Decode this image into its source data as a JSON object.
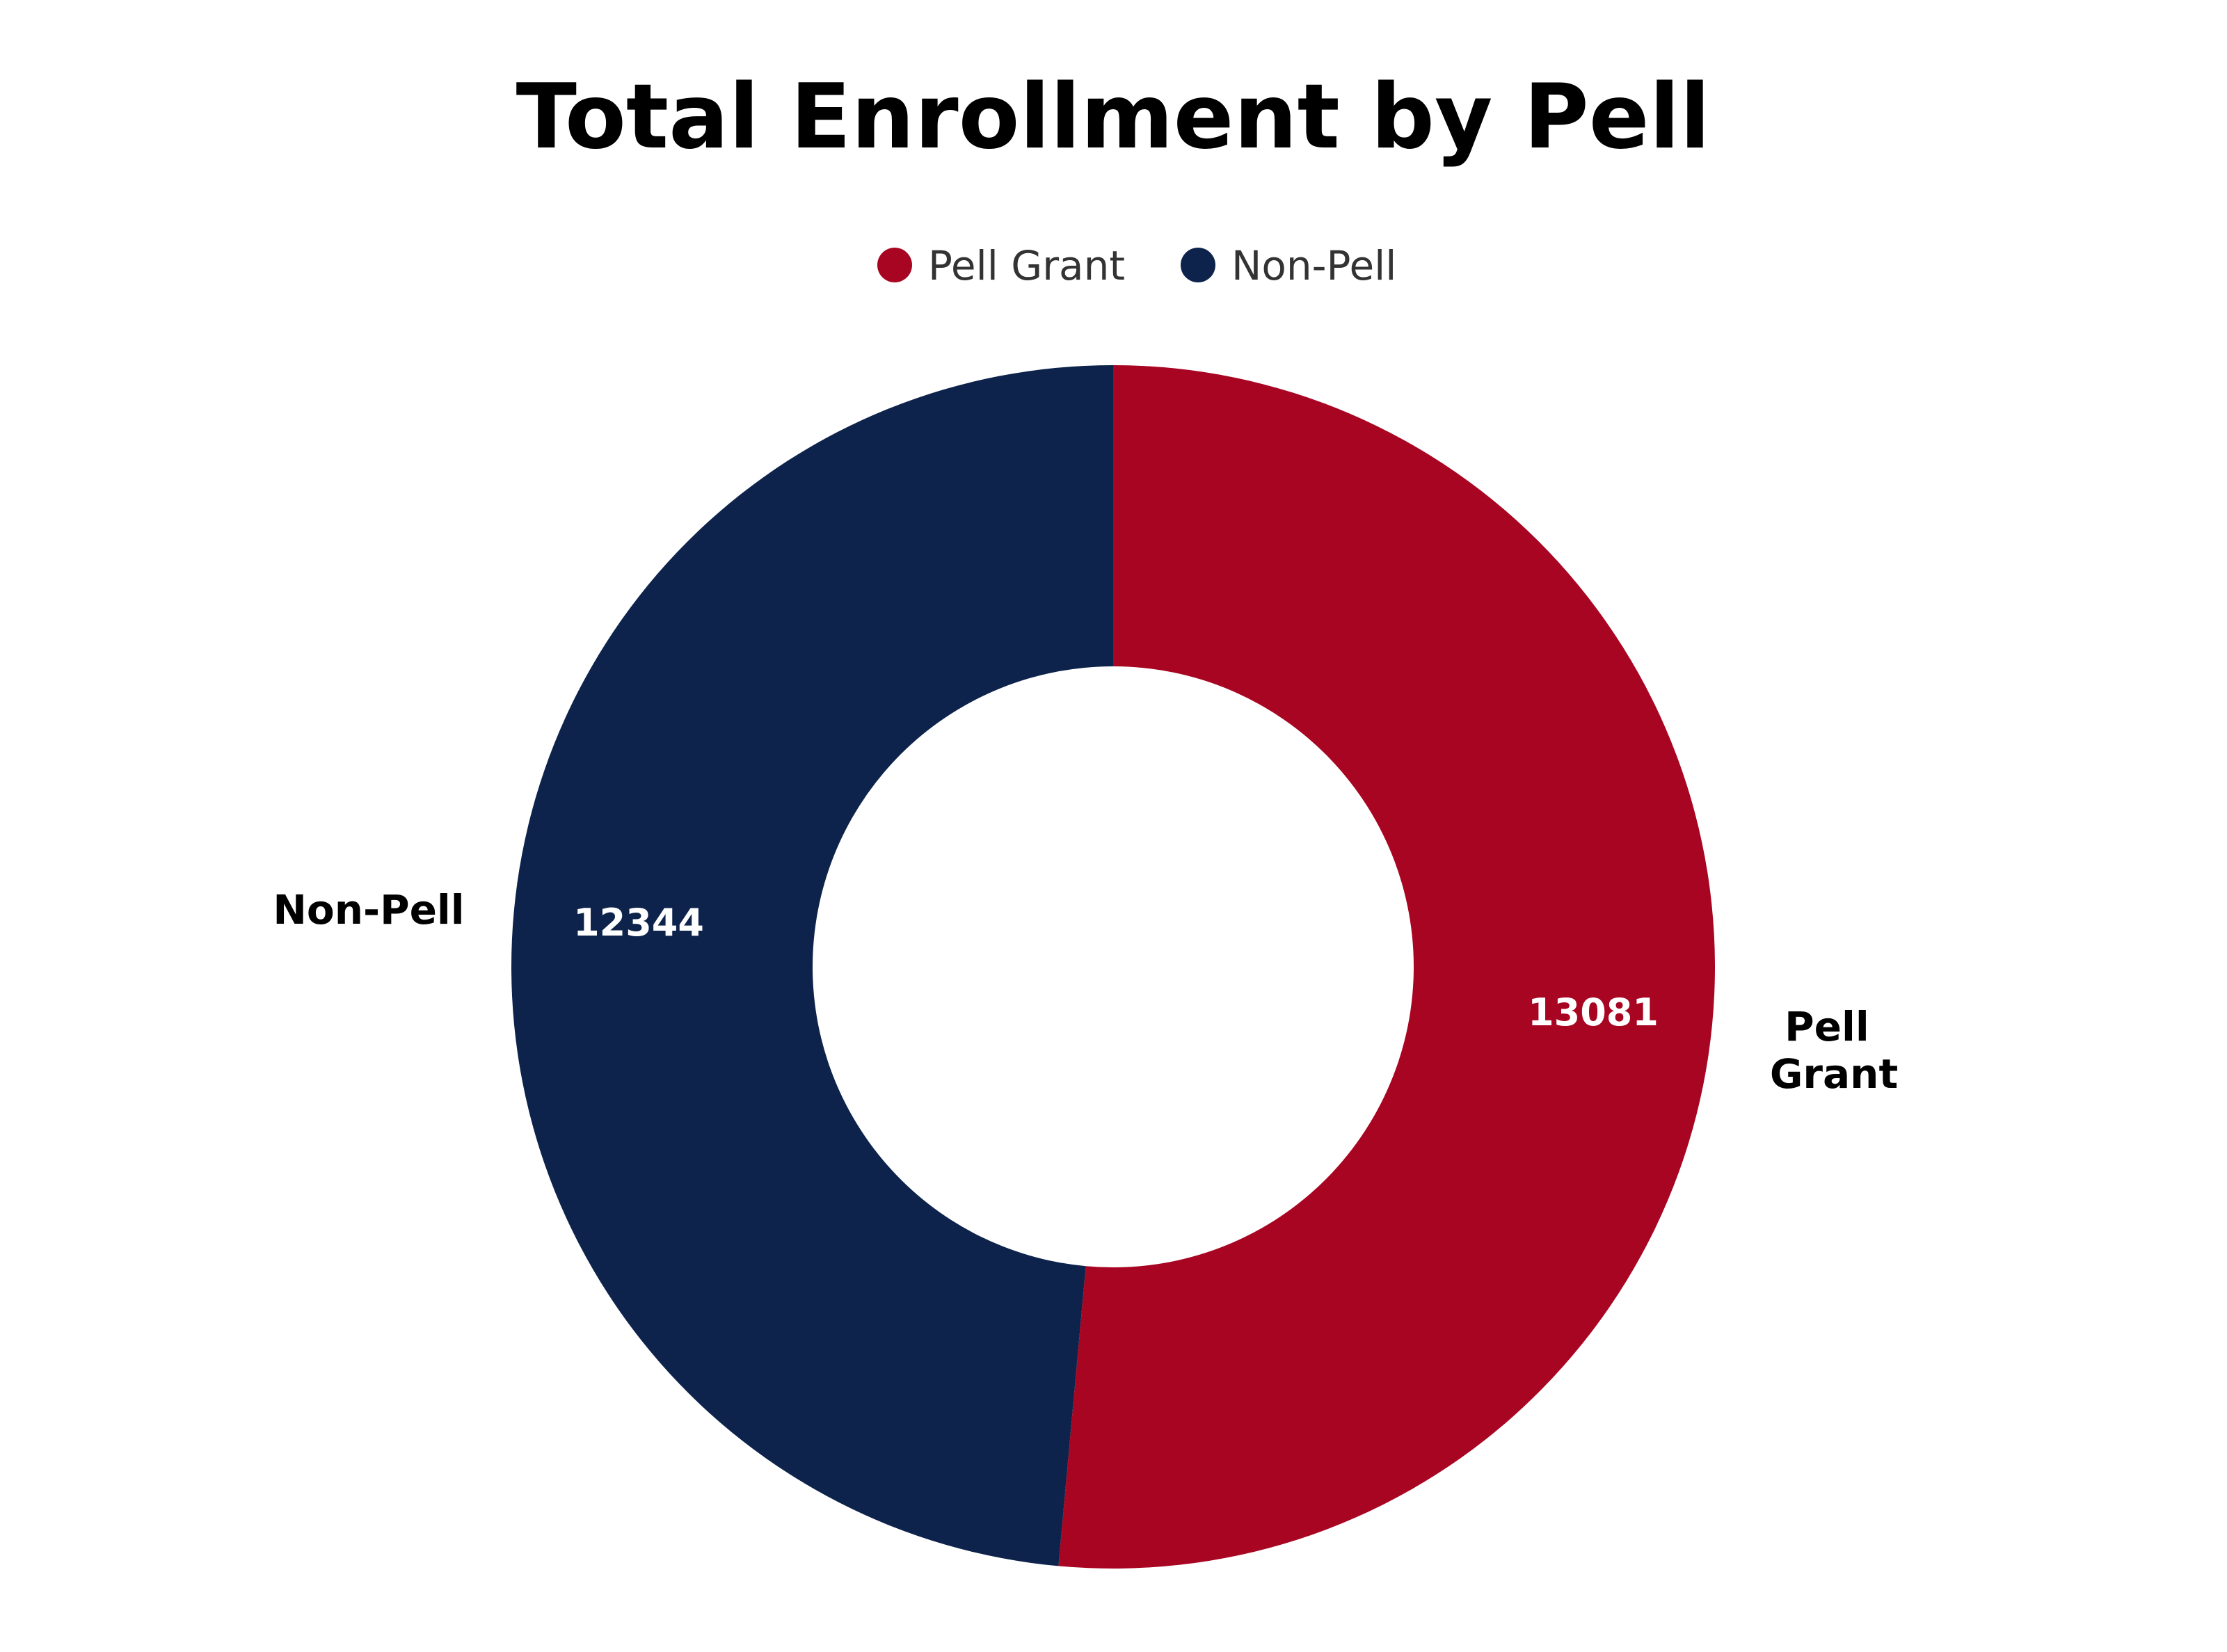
{
  "chart_data": {
    "type": "pie",
    "variant": "donut",
    "title": "Total Enrollment by Pell",
    "legend_position": "top",
    "slices": [
      {
        "name": "Pell Grant",
        "value": 13081,
        "color": "#a80522",
        "label_lines": [
          "Pell",
          "Grant"
        ]
      },
      {
        "name": "Non-Pell",
        "value": 12344,
        "color": "#0d234b",
        "label_lines": [
          "Non-Pell"
        ]
      }
    ]
  }
}
